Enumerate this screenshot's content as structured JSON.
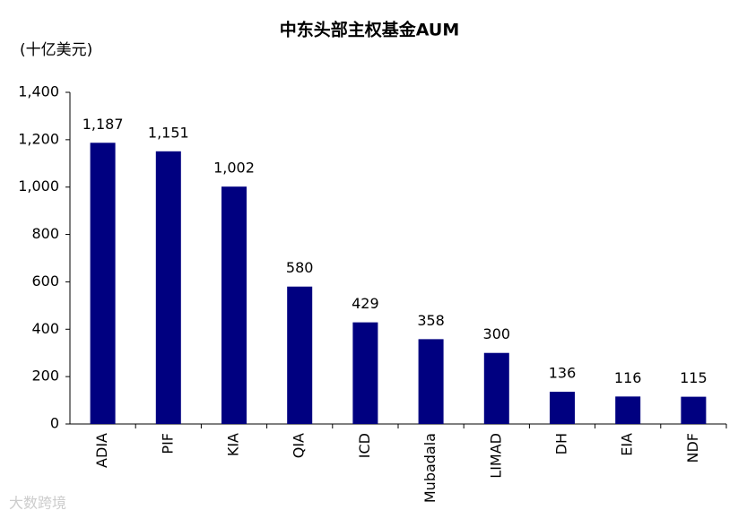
{
  "chart_data": {
    "type": "bar",
    "title": "中东头部主权基金AUM",
    "y_label": "(十亿美元)",
    "categories": [
      "ADIA",
      "PIF",
      "KIA",
      "QIA",
      "ICD",
      "Mubadala",
      "LIMAD",
      "DH",
      "EIA",
      "NDF"
    ],
    "values": [
      1187,
      1151,
      1002,
      580,
      429,
      358,
      300,
      136,
      116,
      115
    ],
    "value_labels": [
      "1,187",
      "1,151",
      "1,002",
      "580",
      "429",
      "358",
      "300",
      "136",
      "116",
      "115"
    ],
    "color": "#000080",
    "ylim": [
      0,
      1400
    ],
    "yticks": [
      0,
      200,
      400,
      600,
      800,
      {
        "value": 1000,
        "label": "1,000"
      },
      {
        "value": 1200,
        "label": "1,200"
      },
      {
        "value": 1400,
        "label": "1,400"
      }
    ],
    "grid": false,
    "watermark": "大数跨境"
  }
}
